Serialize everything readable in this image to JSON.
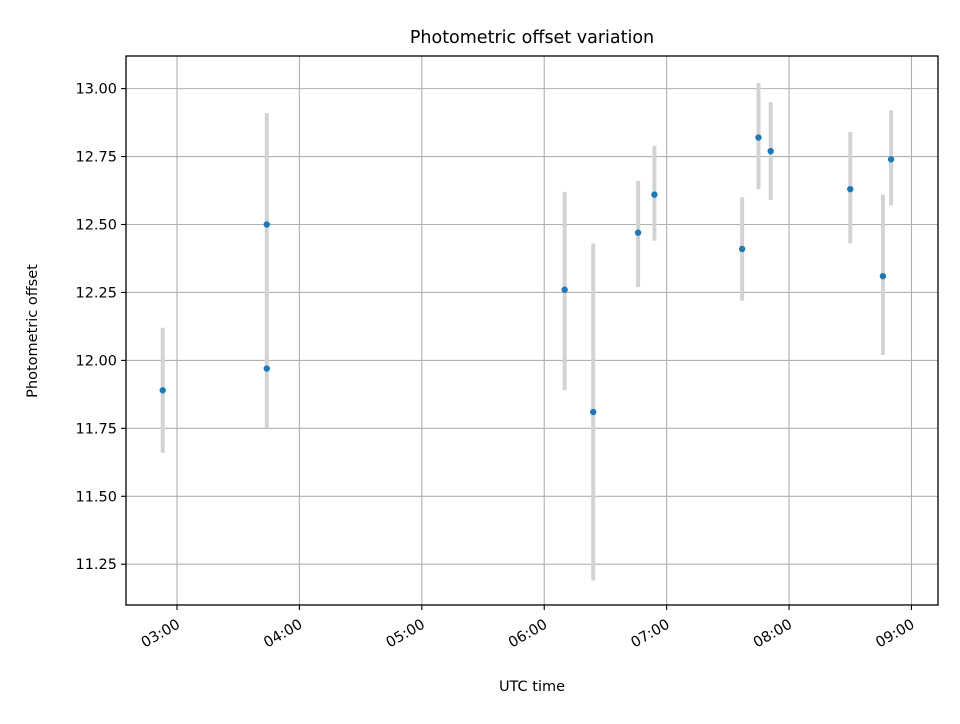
{
  "chart_data": {
    "type": "scatter",
    "title": "Photometric offset variation",
    "xlabel": "UTC time",
    "ylabel": "Photometric offset",
    "x_axis_type": "time",
    "xlim": [
      "02:35",
      "09:13"
    ],
    "ylim": [
      11.1,
      13.12
    ],
    "x_ticks": [
      "03:00",
      "04:00",
      "05:00",
      "06:00",
      "07:00",
      "08:00",
      "09:00"
    ],
    "y_ticks": [
      "11.25",
      "11.50",
      "11.75",
      "12.00",
      "12.25",
      "12.50",
      "12.75",
      "13.00"
    ],
    "grid": true,
    "legend": "none",
    "points": [
      {
        "x": "02:53",
        "y": 11.89,
        "err_low": 11.66,
        "err_high": 12.12
      },
      {
        "x": "03:44",
        "y": 11.97,
        "err_low": 11.75,
        "err_high": 12.08
      },
      {
        "x": "03:44",
        "y": 12.5,
        "err_low": 12.08,
        "err_high": 12.91
      },
      {
        "x": "06:10",
        "y": 12.26,
        "err_low": 11.89,
        "err_high": 12.62
      },
      {
        "x": "06:24",
        "y": 11.81,
        "err_low": 11.19,
        "err_high": 12.43
      },
      {
        "x": "06:46",
        "y": 12.47,
        "err_low": 12.27,
        "err_high": 12.66
      },
      {
        "x": "06:54",
        "y": 12.61,
        "err_low": 12.44,
        "err_high": 12.79
      },
      {
        "x": "07:37",
        "y": 12.41,
        "err_low": 12.22,
        "err_high": 12.6
      },
      {
        "x": "07:45",
        "y": 12.82,
        "err_low": 12.63,
        "err_high": 13.02
      },
      {
        "x": "07:51",
        "y": 12.77,
        "err_low": 12.59,
        "err_high": 12.95
      },
      {
        "x": "08:30",
        "y": 12.63,
        "err_low": 12.43,
        "err_high": 12.84
      },
      {
        "x": "08:46",
        "y": 12.31,
        "err_low": 12.02,
        "err_high": 12.61
      },
      {
        "x": "08:50",
        "y": 12.74,
        "err_low": 12.57,
        "err_high": 12.92
      }
    ],
    "colors": {
      "point": "#1f77b4",
      "errorbar": "#d3d3d3",
      "grid": "#b0b0b0",
      "axes": "#000000"
    }
  }
}
